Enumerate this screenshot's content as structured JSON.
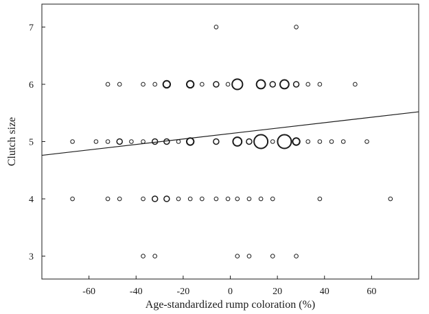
{
  "chart_data": {
    "type": "scatter",
    "title": "",
    "xlabel": "Age-standardized rump coloration (%)",
    "ylabel": "Clutch size",
    "xlim": [
      -80,
      80
    ],
    "ylim": [
      2.6,
      7.4
    ],
    "xticks": [
      -60,
      -40,
      -20,
      0,
      20,
      40,
      60
    ],
    "xtick_labels": [
      "-60",
      "-40",
      "-20",
      "0",
      "20",
      "40",
      "60"
    ],
    "yticks": [
      3,
      4,
      5,
      6,
      7
    ],
    "ytick_labels": [
      "3",
      "4",
      "5",
      "6",
      "7"
    ],
    "grid": false,
    "legend": "none",
    "marker": "open circle (size proportional to number of overlapping observations)",
    "regression_line": {
      "x": [
        -80,
        80
      ],
      "y": [
        4.76,
        5.52
      ]
    },
    "points": [
      {
        "x": -6,
        "y": 7,
        "n": 1
      },
      {
        "x": 28,
        "y": 7,
        "n": 1
      },
      {
        "x": -52,
        "y": 6,
        "n": 1
      },
      {
        "x": -47,
        "y": 6,
        "n": 1
      },
      {
        "x": -37,
        "y": 6,
        "n": 1
      },
      {
        "x": -32,
        "y": 6,
        "n": 1
      },
      {
        "x": -27,
        "y": 6,
        "n": 3
      },
      {
        "x": -17,
        "y": 6,
        "n": 3
      },
      {
        "x": -12,
        "y": 6,
        "n": 1
      },
      {
        "x": -6,
        "y": 6,
        "n": 2
      },
      {
        "x": -1,
        "y": 6,
        "n": 1
      },
      {
        "x": 3,
        "y": 6,
        "n": 5
      },
      {
        "x": 13,
        "y": 6,
        "n": 4
      },
      {
        "x": 18,
        "y": 6,
        "n": 2
      },
      {
        "x": 23,
        "y": 6,
        "n": 4
      },
      {
        "x": 28,
        "y": 6,
        "n": 2
      },
      {
        "x": 33,
        "y": 6,
        "n": 1
      },
      {
        "x": 38,
        "y": 6,
        "n": 1
      },
      {
        "x": 53,
        "y": 6,
        "n": 1
      },
      {
        "x": -67,
        "y": 5,
        "n": 1
      },
      {
        "x": -57,
        "y": 5,
        "n": 1
      },
      {
        "x": -52,
        "y": 5,
        "n": 1
      },
      {
        "x": -47,
        "y": 5,
        "n": 2
      },
      {
        "x": -42,
        "y": 5,
        "n": 1
      },
      {
        "x": -37,
        "y": 5,
        "n": 1
      },
      {
        "x": -32,
        "y": 5,
        "n": 2
      },
      {
        "x": -27,
        "y": 5,
        "n": 2
      },
      {
        "x": -22,
        "y": 5,
        "n": 1
      },
      {
        "x": -17,
        "y": 5,
        "n": 3
      },
      {
        "x": -6,
        "y": 5,
        "n": 2
      },
      {
        "x": 3,
        "y": 5,
        "n": 4
      },
      {
        "x": 8,
        "y": 5,
        "n": 2
      },
      {
        "x": 13,
        "y": 5,
        "n": 7
      },
      {
        "x": 18,
        "y": 5,
        "n": 1
      },
      {
        "x": 23,
        "y": 5,
        "n": 7
      },
      {
        "x": 28,
        "y": 5,
        "n": 3
      },
      {
        "x": 33,
        "y": 5,
        "n": 1
      },
      {
        "x": 38,
        "y": 5,
        "n": 1
      },
      {
        "x": 43,
        "y": 5,
        "n": 1
      },
      {
        "x": 48,
        "y": 5,
        "n": 1
      },
      {
        "x": 58,
        "y": 5,
        "n": 1
      },
      {
        "x": -67,
        "y": 4,
        "n": 1
      },
      {
        "x": -52,
        "y": 4,
        "n": 1
      },
      {
        "x": -47,
        "y": 4,
        "n": 1
      },
      {
        "x": -37,
        "y": 4,
        "n": 1
      },
      {
        "x": -32,
        "y": 4,
        "n": 2
      },
      {
        "x": -27,
        "y": 4,
        "n": 2
      },
      {
        "x": -22,
        "y": 4,
        "n": 1
      },
      {
        "x": -17,
        "y": 4,
        "n": 1
      },
      {
        "x": -12,
        "y": 4,
        "n": 1
      },
      {
        "x": -6,
        "y": 4,
        "n": 1
      },
      {
        "x": -1,
        "y": 4,
        "n": 1
      },
      {
        "x": 3,
        "y": 4,
        "n": 1
      },
      {
        "x": 8,
        "y": 4,
        "n": 1
      },
      {
        "x": 13,
        "y": 4,
        "n": 1
      },
      {
        "x": 18,
        "y": 4,
        "n": 1
      },
      {
        "x": 38,
        "y": 4,
        "n": 1
      },
      {
        "x": 68,
        "y": 4,
        "n": 1
      },
      {
        "x": -37,
        "y": 3,
        "n": 1
      },
      {
        "x": -32,
        "y": 3,
        "n": 1
      },
      {
        "x": 3,
        "y": 3,
        "n": 1
      },
      {
        "x": 8,
        "y": 3,
        "n": 1
      },
      {
        "x": 18,
        "y": 3,
        "n": 1
      },
      {
        "x": 28,
        "y": 3,
        "n": 1
      }
    ]
  }
}
